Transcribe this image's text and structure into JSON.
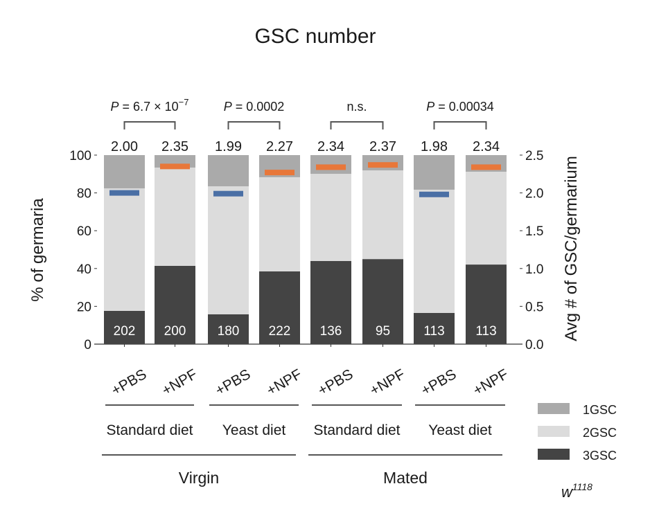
{
  "chart_data": {
    "type": "bar",
    "subtype": "stacked-100-percent-with-secondary-axis-markers",
    "title": "GSC number",
    "ylabel": "% of germaria",
    "y2label": "Avg # of GSC/germarium",
    "ylim": [
      0,
      100
    ],
    "y2lim": [
      0,
      2.5
    ],
    "yticks": [
      "0",
      "20",
      "40",
      "60",
      "80",
      "100"
    ],
    "y2ticks": [
      "0.0",
      "0.5",
      "1.0",
      "1.5",
      "2.0",
      "2.5"
    ],
    "categories": [
      "+PBS",
      "+NPF",
      "+PBS",
      "+NPF",
      "+PBS",
      "+NPF",
      "+PBS",
      "+NPF"
    ],
    "diet_groups": [
      {
        "label": "Standard diet",
        "bars": [
          0,
          1
        ]
      },
      {
        "label": "Yeast diet",
        "bars": [
          2,
          3
        ]
      },
      {
        "label": "Standard diet",
        "bars": [
          4,
          5
        ]
      },
      {
        "label": "Yeast diet",
        "bars": [
          6,
          7
        ]
      }
    ],
    "status_groups": [
      {
        "label": "Virgin",
        "bars": [
          0,
          3
        ]
      },
      {
        "label": "Mated",
        "bars": [
          4,
          7
        ]
      }
    ],
    "series": [
      {
        "name": "3GSC",
        "color": "#444444",
        "values": [
          17.6,
          41.4,
          15.8,
          38.5,
          44.0,
          45.0,
          16.5,
          42.1
        ]
      },
      {
        "name": "2GSC",
        "color": "#dcdcdc",
        "values": [
          64.8,
          52.0,
          67.7,
          49.8,
          46.1,
          46.9,
          65.2,
          49.1
        ]
      },
      {
        "name": "1GSC",
        "color": "#aaaaaa",
        "values": [
          17.6,
          6.6,
          16.5,
          11.7,
          9.9,
          8.1,
          18.3,
          8.8
        ]
      }
    ],
    "avg_gsc": [
      2.0,
      2.35,
      1.99,
      2.27,
      2.34,
      2.37,
      1.98,
      2.34
    ],
    "avg_labels": [
      "2.00",
      "2.35",
      "1.99",
      "2.27",
      "2.34",
      "2.37",
      "1.98",
      "2.34"
    ],
    "avg_marker_colors": [
      "#4a6fa5",
      "#e8773a",
      "#4a6fa5",
      "#e8773a",
      "#e8773a",
      "#e8773a",
      "#4a6fa5",
      "#e8773a"
    ],
    "n_labels": [
      "202",
      "200",
      "180",
      "222",
      "136",
      "95",
      "113",
      "113"
    ],
    "comparisons": [
      {
        "bars": [
          0,
          1
        ],
        "label_prefix": "P",
        "label_text": " = 6.7 × 10",
        "label_exp": "−7"
      },
      {
        "bars": [
          2,
          3
        ],
        "label_prefix": "P",
        "label_text": " = 0.0002",
        "label_exp": ""
      },
      {
        "bars": [
          4,
          5
        ],
        "label_prefix": "",
        "label_text": "n.s.",
        "label_exp": ""
      },
      {
        "bars": [
          6,
          7
        ],
        "label_prefix": "P",
        "label_text": " = 0.00034",
        "label_exp": ""
      }
    ],
    "legend": {
      "placement": "bottom-right",
      "entries": [
        {
          "label": "1GSC",
          "color": "#aaaaaa"
        },
        {
          "label": "2GSC",
          "color": "#dcdcdc"
        },
        {
          "label": "3GSC",
          "color": "#444444"
        }
      ]
    },
    "genotype_label": "w",
    "genotype_superscript": "1118",
    "grid": false
  }
}
